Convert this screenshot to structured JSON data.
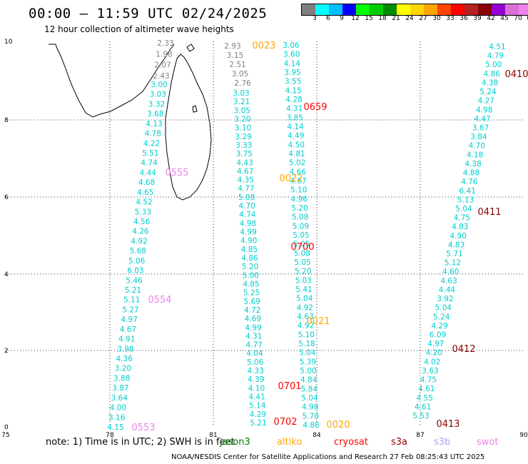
{
  "header": {
    "title": "00:00 – 11:59 UTC 02/24/2025",
    "subtitle": "12 hour collection of altimeter wave heights"
  },
  "colorbar": {
    "colors": [
      "#808080",
      "#00ffff",
      "#00bfff",
      "#0000ff",
      "#00ff00",
      "#00cd00",
      "#008b00",
      "#ffff00",
      "#ffd700",
      "#ffa500",
      "#ff4500",
      "#ff0000",
      "#b22222",
      "#8b0000",
      "#9400d3",
      "#da70d6",
      "#ee82ee",
      "#000000"
    ],
    "labels": [
      "3",
      "6",
      "9",
      "12",
      "15",
      "18",
      "21",
      "24",
      "27",
      "30",
      "33",
      "36",
      "39",
      "42",
      "45",
      "70",
      "(ft)"
    ]
  },
  "axes": {
    "x_labels": [
      "75",
      "78",
      "81",
      "84",
      "87",
      "90"
    ],
    "y_labels": [
      "0",
      "2",
      "4",
      "6",
      "8",
      "10"
    ]
  },
  "footer": {
    "note": "note: 1) Time is in UTC; 2) SWH is in feet",
    "satellites": [
      {
        "name": "jason3",
        "color": "#008000"
      },
      {
        "name": "altiko",
        "color": "#ffa500"
      },
      {
        "name": "cryosat",
        "color": "#ff0000"
      },
      {
        "name": "s3a",
        "color": "#8b0000"
      },
      {
        "name": "s3b",
        "color": "#b0a0ff"
      },
      {
        "name": "swot",
        "color": "#ee82ee"
      }
    ],
    "credit": "NOAA/NESDIS Center for Satellite Applications and Research   27 Feb 08:25:43 UTC 2025"
  },
  "tracks": [
    {
      "color": "#00cdcd",
      "values": [
        "4.15",
        "3.16",
        "4.00",
        "3.64",
        "3.87",
        "3.88",
        "3.20",
        "4.36",
        "3.98",
        "4.91",
        "4.67",
        "4.97",
        "5.27",
        "5.11",
        "5.21",
        "5.46",
        "6.03",
        "5.06",
        "5.68",
        "4.92",
        "4.26",
        "4.56",
        "5.33",
        "4.52",
        "4.65",
        "4.68",
        "4.44",
        "4.74",
        "5.51",
        "4.22",
        "4.78",
        "4.13",
        "3.68",
        "3.32",
        "3.03",
        "3.00"
      ]
    },
    {
      "color": "#808080",
      "values": [
        "2.43",
        "2.07",
        "1.98",
        "2.33"
      ]
    },
    {
      "color": "#00cdcd",
      "values": [
        "5.21",
        "4.29",
        "5.14",
        "4.41",
        "4.10",
        "4.39",
        "4.33",
        "5.06",
        "4.04",
        "4.77",
        "4.31",
        "4.99",
        "4.69",
        "4.72",
        "5.69",
        "5.25",
        "4.85",
        "5.00",
        "5.20",
        "4.86",
        "4.85",
        "4.90",
        "4.99",
        "4.98",
        "4.74",
        "4.70",
        "5.08",
        "4.77",
        "4.35",
        "4.67",
        "4.43",
        "3.75",
        "3.33",
        "3.29",
        "3.10",
        "3.20",
        "3.05",
        "3.21",
        "3.03"
      ]
    },
    {
      "color": "#808080",
      "values": [
        "2.76",
        "3.05",
        "2.51",
        "3.15",
        "2.93"
      ]
    },
    {
      "color": "#00cdcd",
      "values": [
        "4.80",
        "5.70",
        "4.98",
        "5.04",
        "5.84",
        "4.84",
        "5.00",
        "5.39",
        "5.04",
        "5.18",
        "5.10",
        "4.92",
        "4.63",
        "4.92",
        "5.04",
        "5.41",
        "5.03",
        "5.20",
        "5.05",
        "5.08",
        "5.05",
        "5.05",
        "5.09",
        "5.08",
        "5.20",
        "4.96",
        "5.10",
        "4.67",
        "4.66",
        "5.02",
        "4.81",
        "4.50",
        "4.49",
        "4.14",
        "3.85",
        "4.31",
        "4.28",
        "4.15",
        "3.55",
        "3.95",
        "4.14",
        "3.60",
        "3.06"
      ]
    },
    {
      "color": "#00cdcd",
      "values": [
        "5.53",
        "4.61",
        "4.55",
        "4.61",
        "4.75",
        "3.63",
        "4.02",
        "4.20",
        "4.97",
        "6.09",
        "4.29",
        "5.24",
        "5.04",
        "3.92",
        "4.44",
        "4.63",
        "4.60",
        "5.12",
        "5.71",
        "4.83",
        "4.90",
        "4.83",
        "4.75",
        "5.04",
        "5.13",
        "6.41",
        "4.76",
        "4.88",
        "4.38",
        "4.18",
        "4.70",
        "3.84",
        "3.67",
        "4.47",
        "4.98",
        "4.27",
        "5.24",
        "4.38",
        "4.86",
        "5.00",
        "4.79",
        "4.51"
      ]
    }
  ],
  "time_labels": [
    {
      "text": "0023",
      "color": "#ffa500"
    },
    {
      "text": "0659",
      "color": "#ff0000"
    },
    {
      "text": "0555",
      "color": "#ee82ee"
    },
    {
      "text": "0022",
      "color": "#ffa500"
    },
    {
      "text": "0411",
      "color": "#8b0000"
    },
    {
      "text": "0410",
      "color": "#8b0000"
    },
    {
      "text": "0700",
      "color": "#ff0000"
    },
    {
      "text": "0554",
      "color": "#ee82ee"
    },
    {
      "text": "0021",
      "color": "#ffa500"
    },
    {
      "text": "0412",
      "color": "#8b0000"
    },
    {
      "text": "0701",
      "color": "#ff0000"
    },
    {
      "text": "0702",
      "color": "#ff0000"
    },
    {
      "text": "0020",
      "color": "#ffa500"
    },
    {
      "text": "0413",
      "color": "#8b0000"
    },
    {
      "text": "0553",
      "color": "#ee82ee"
    }
  ]
}
